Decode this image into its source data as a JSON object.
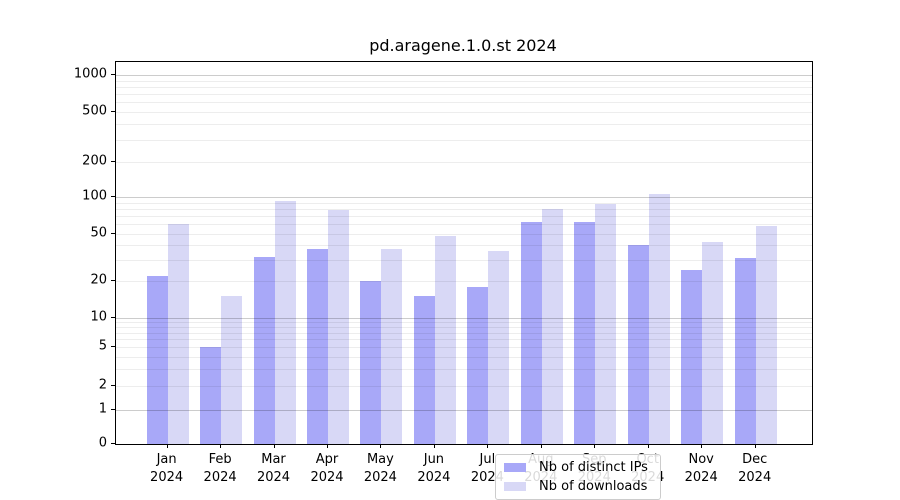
{
  "chart_data": {
    "type": "bar",
    "title": "pd.aragene.1.0.st 2024",
    "yscale": "symlog",
    "ylim": [
      0,
      1100
    ],
    "grid": true,
    "legend_position": "lower center",
    "months": [
      "Jan",
      "Feb",
      "Mar",
      "Apr",
      "May",
      "Jun",
      "Jul",
      "Aug",
      "Sep",
      "Oct",
      "Nov",
      "Dec"
    ],
    "year": "2024",
    "ytick_labels": [
      "1000",
      "500",
      "200",
      "100",
      "50",
      "20",
      "10",
      "5",
      "2",
      "1",
      "0"
    ],
    "series": [
      {
        "name": "Nb of distinct IPs",
        "color": "#a8a8f8",
        "values": [
          22,
          5,
          32,
          37,
          20,
          15,
          18,
          63,
          62,
          40,
          25,
          31
        ]
      },
      {
        "name": "Nb of downloads",
        "color": "#d8d8f6",
        "values": [
          60,
          15,
          93,
          79,
          37,
          48,
          36,
          80,
          87,
          107,
          43,
          58
        ]
      }
    ]
  }
}
